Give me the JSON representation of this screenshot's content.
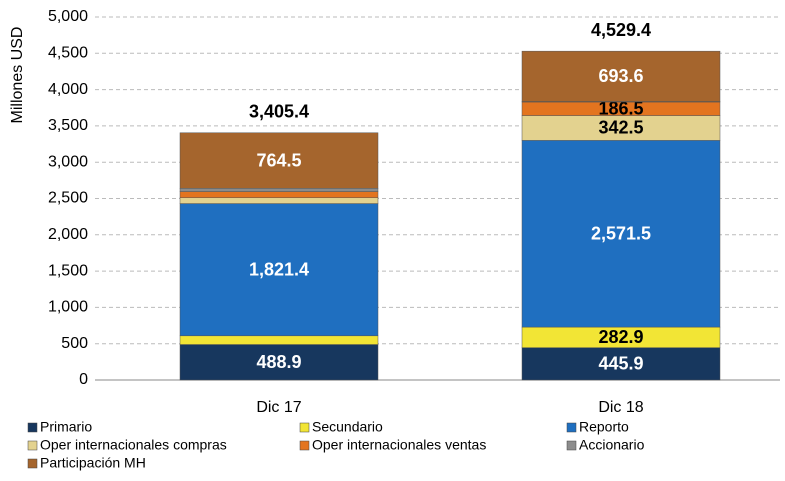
{
  "chart_data": {
    "type": "stacked_bar",
    "y_label": "Millones USD",
    "categories": [
      "Dic 17",
      "Dic 18"
    ],
    "series": [
      {
        "name": "Primario",
        "color": "#17375e",
        "values": [
          488.9,
          445.9
        ],
        "value_labels": [
          "488.9",
          "445.9"
        ]
      },
      {
        "name": "Secundario",
        "color": "#f2e535",
        "values": [
          120.0,
          282.9
        ],
        "value_labels": [
          null,
          "282.9"
        ]
      },
      {
        "name": "Reporto",
        "color": "#1f6fc0",
        "values": [
          1821.4,
          2571.5
        ],
        "value_labels": [
          "1,821.4",
          "2,571.5"
        ]
      },
      {
        "name": "Oper internacionales compras",
        "color": "#e3d28f",
        "values": [
          80.0,
          342.5
        ],
        "value_labels": [
          null,
          "342.5"
        ]
      },
      {
        "name": "Oper internacionales ventas",
        "color": "#e3741f",
        "values": [
          85.6,
          186.5
        ],
        "value_labels": [
          null,
          "186.5"
        ]
      },
      {
        "name": "Accionario",
        "color": "#8c8c8c",
        "values": [
          45.0,
          6.5
        ],
        "value_labels": [
          null,
          null
        ]
      },
      {
        "name": "Participación MH",
        "color": "#a5652d",
        "values": [
          764.5,
          693.6
        ],
        "value_labels": [
          "764.5",
          "693.6"
        ]
      }
    ],
    "totals": [
      3405.4,
      4529.4
    ],
    "total_labels": [
      "3,405.4",
      "4,529.4"
    ],
    "ylim": [
      0,
      5000
    ],
    "yticks": [
      0,
      500,
      {
        "value": 1000,
        "label": "1,000"
      },
      {
        "value": 1500,
        "label": "1,500"
      },
      {
        "value": 2000,
        "label": "2,000"
      },
      {
        "value": 2500,
        "label": "2,500"
      },
      {
        "value": 3000,
        "label": "3,000"
      },
      {
        "value": 3500,
        "label": "3,500"
      },
      {
        "value": 4000,
        "label": "4,000"
      },
      {
        "value": 4500,
        "label": "4,500"
      },
      {
        "value": 5000,
        "label": "5,000"
      }
    ],
    "grid": true
  }
}
